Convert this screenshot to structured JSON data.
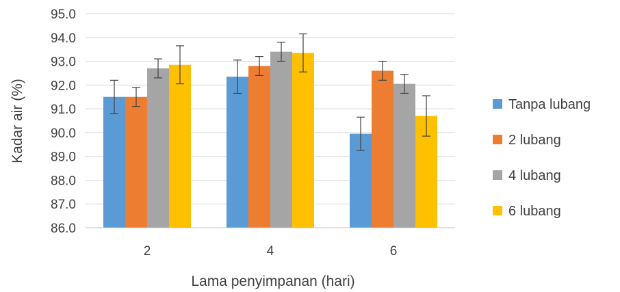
{
  "chart_data": {
    "type": "bar",
    "title": "",
    "xlabel": "Lama penyimpanan (hari)",
    "ylabel": "Kadar air (%)",
    "categories": [
      "2",
      "4",
      "6"
    ],
    "ylim": [
      86.0,
      95.0
    ],
    "yticks": [
      "86.0",
      "87.0",
      "88.0",
      "89.0",
      "90.0",
      "91.0",
      "92.0",
      "93.0",
      "94.0",
      "95.0"
    ],
    "grid": true,
    "legend_position": "right",
    "series": [
      {
        "name": "Tanpa lubang",
        "color": "#5B9BD5",
        "values": [
          91.5,
          92.35,
          89.95
        ],
        "errors": [
          0.7,
          0.7,
          0.7
        ]
      },
      {
        "name": "2 lubang",
        "color": "#ED7D31",
        "values": [
          91.5,
          92.8,
          92.6
        ],
        "errors": [
          0.4,
          0.4,
          0.4
        ]
      },
      {
        "name": "4 lubang",
        "color": "#A5A5A5",
        "values": [
          92.7,
          93.4,
          92.05
        ],
        "errors": [
          0.4,
          0.4,
          0.4
        ]
      },
      {
        "name": "6 lubang",
        "color": "#FFC000",
        "values": [
          92.85,
          93.35,
          90.7
        ],
        "errors": [
          0.8,
          0.8,
          0.85
        ]
      }
    ]
  }
}
